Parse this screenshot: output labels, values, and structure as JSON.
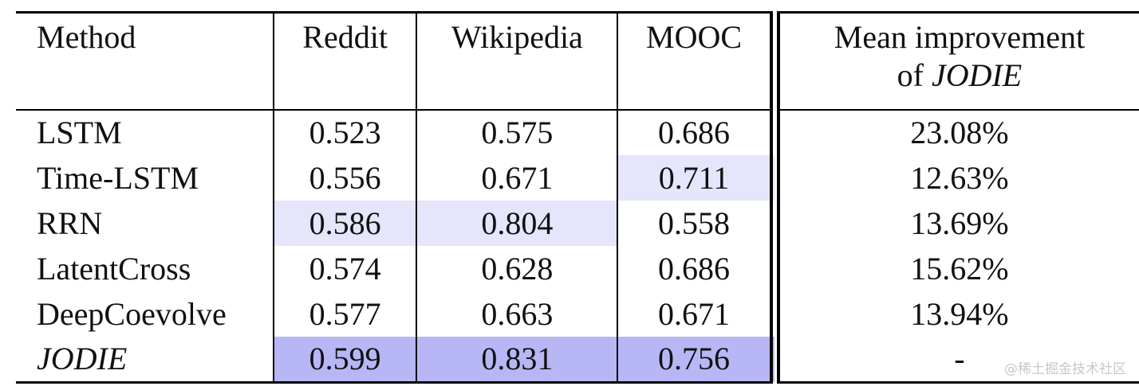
{
  "chart_data": {
    "type": "table",
    "columns": [
      "Method",
      "Reddit",
      "Wikipedia",
      "MOOC",
      "Mean improvement of JODIE"
    ],
    "header": {
      "method": "Method",
      "reddit": "Reddit",
      "wikipedia": "Wikipedia",
      "mooc": "MOOC",
      "mean_line1": "Mean improvement",
      "mean_line2_prefix": "of ",
      "mean_line2_model": "JODIE"
    },
    "rows": [
      {
        "method": "LSTM",
        "reddit": "0.523",
        "wikipedia": "0.575",
        "mooc": "0.686",
        "mean": "23.08%"
      },
      {
        "method": "Time-LSTM",
        "reddit": "0.556",
        "wikipedia": "0.671",
        "mooc": "0.711",
        "mean": "12.63%"
      },
      {
        "method": "RRN",
        "reddit": "0.586",
        "wikipedia": "0.804",
        "mooc": "0.558",
        "mean": "13.69%"
      },
      {
        "method": "LatentCross",
        "reddit": "0.574",
        "wikipedia": "0.628",
        "mooc": "0.686",
        "mean": "15.62%"
      },
      {
        "method": "DeepCoevolve",
        "reddit": "0.577",
        "wikipedia": "0.663",
        "mooc": "0.671",
        "mean": "13.94%"
      },
      {
        "method": "JODIE",
        "reddit": "0.599",
        "wikipedia": "0.831",
        "mooc": "0.756",
        "mean": "-"
      }
    ],
    "highlights": {
      "best_color": "#b7b7f6",
      "second_best_color": "#e5e5fc",
      "best_cells": [
        "JODIE:reddit",
        "JODIE:wikipedia",
        "JODIE:mooc"
      ],
      "second_best_cells": [
        "RRN:reddit",
        "RRN:wikipedia",
        "Time-LSTM:mooc"
      ]
    }
  },
  "watermark": "@稀土掘金技术社区"
}
